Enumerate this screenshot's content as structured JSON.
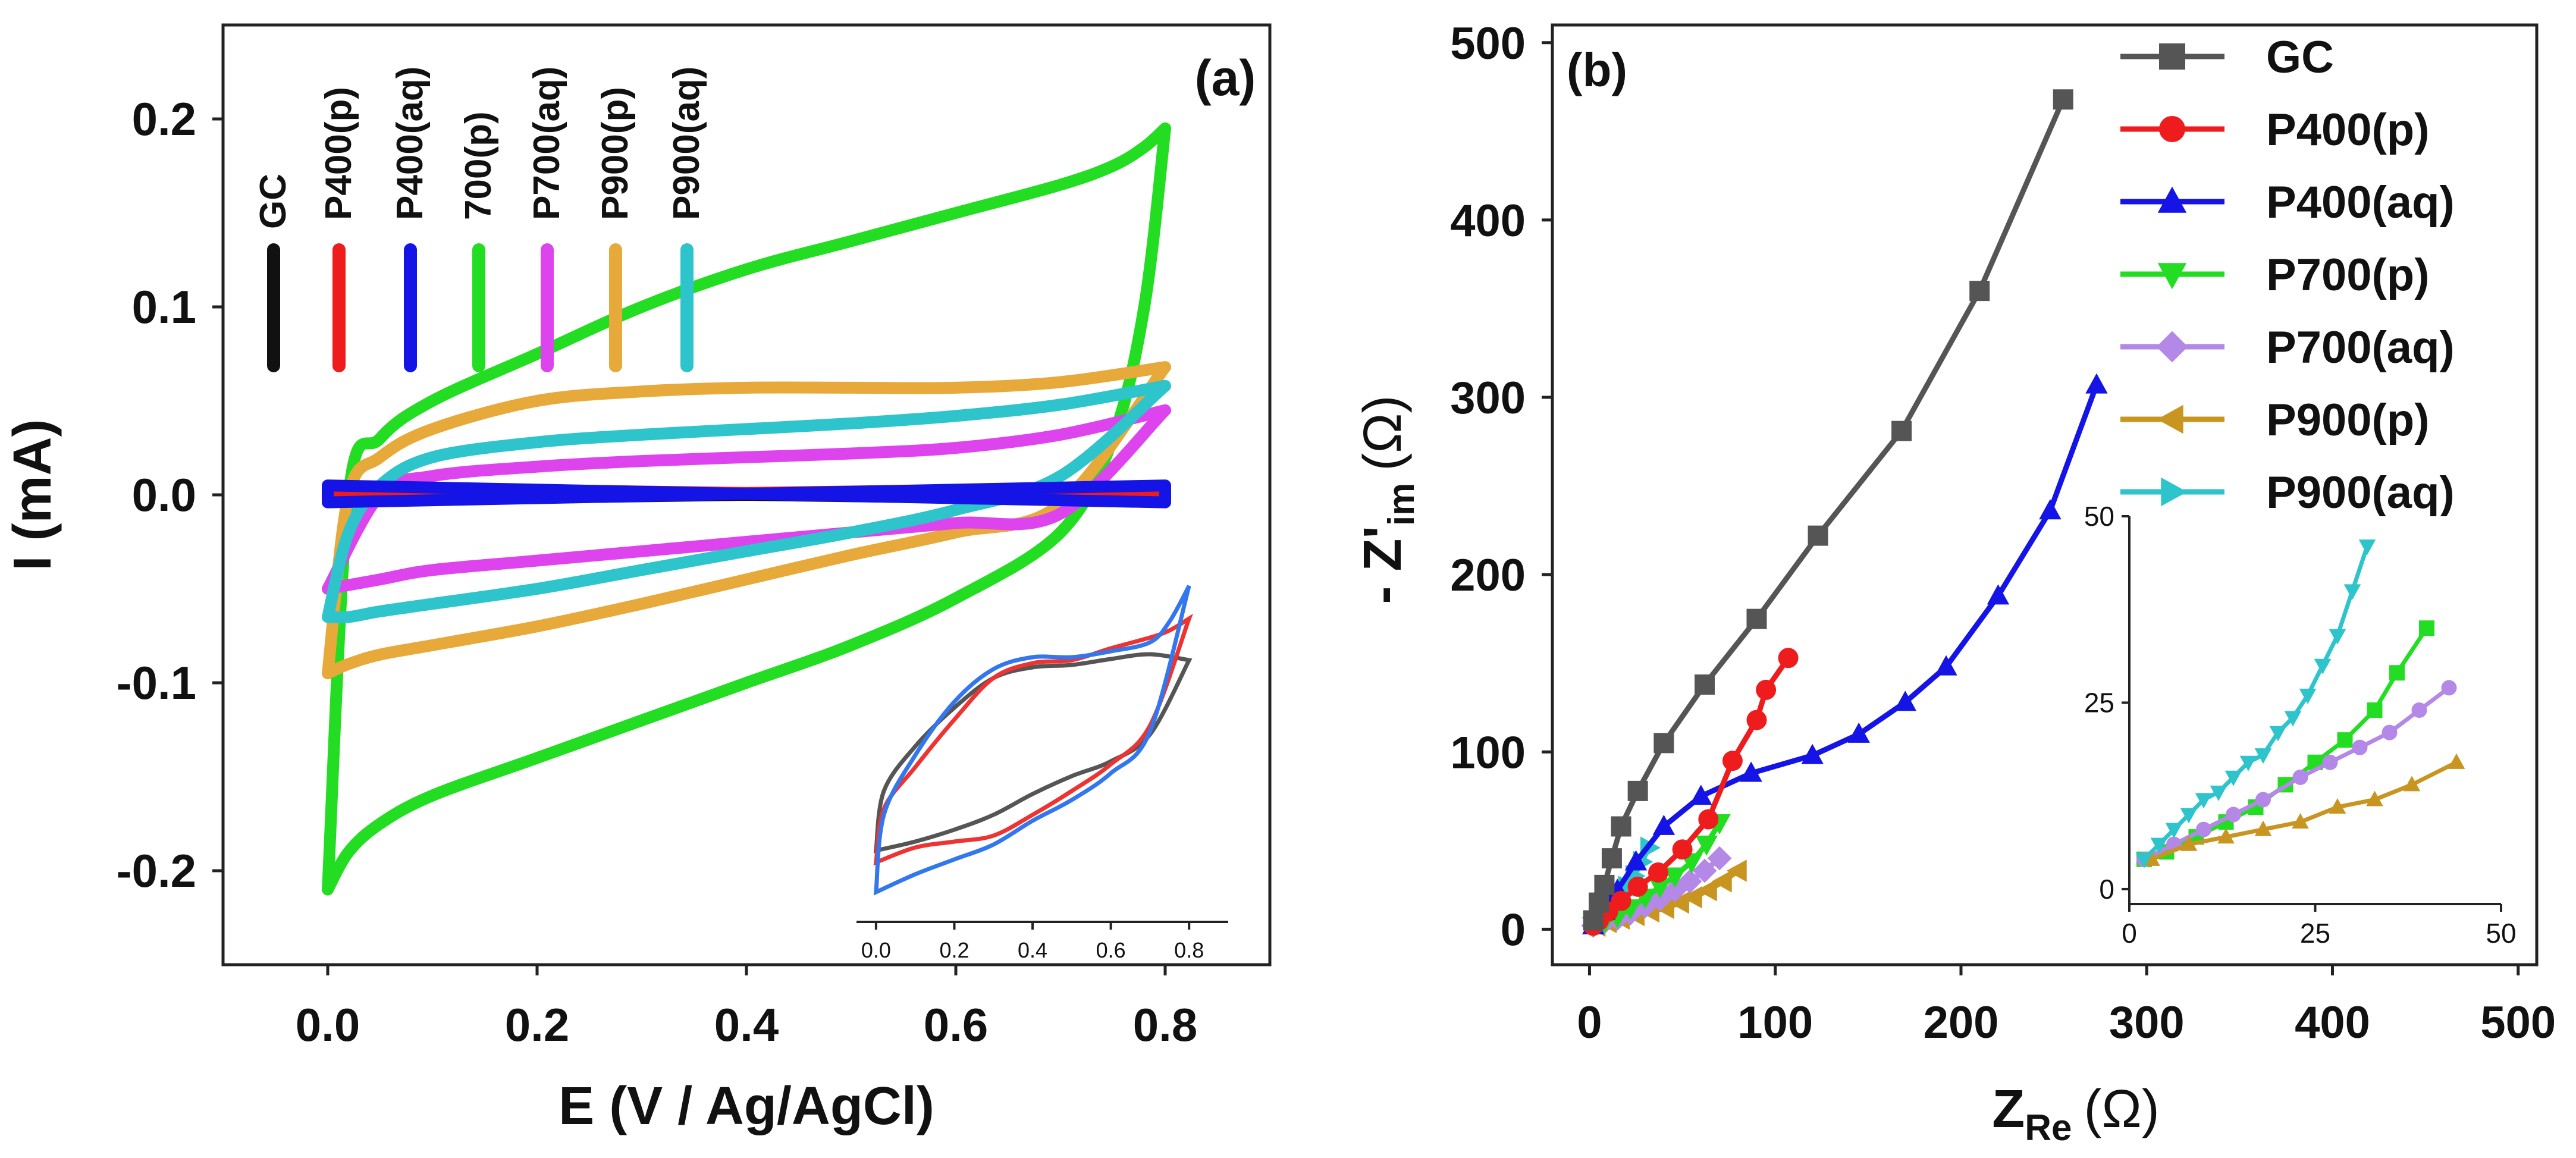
{
  "chart_data": [
    {
      "type": "line",
      "panel_label": "(a)",
      "xlabel": "E (V / Ag/AgCl)",
      "ylabel": "I (mA)",
      "xlim": [
        -0.1,
        0.9
      ],
      "ylim": [
        -0.25,
        0.25
      ],
      "xticks": [
        0.0,
        0.2,
        0.4,
        0.6,
        0.8
      ],
      "xtick_labels": [
        "0.0",
        "0.2",
        "0.4",
        "0.6",
        "0.8"
      ],
      "yticks": [
        0.2,
        0.1,
        0.0,
        -0.1,
        -0.2
      ],
      "ytick_labels": [
        "0.2",
        "0.1",
        "0.0",
        "-0.1",
        "-0.2"
      ],
      "legend_position": "top-left, vertical labels",
      "series": [
        {
          "name": "GC",
          "color": "#111111",
          "x": [
            0.0,
            0.8
          ],
          "y_forward": [
            -0.003,
            0.003
          ],
          "y_reverse": [
            0.003,
            -0.003
          ]
        },
        {
          "name": "P400(p)",
          "color": "#ee1c1c",
          "x": [
            0.0,
            0.8
          ],
          "y_forward": [
            -0.002,
            0.004
          ],
          "y_reverse": [
            0.004,
            -0.002
          ]
        },
        {
          "name": "P400(aq)",
          "color": "#1414e6",
          "x": [
            0.0,
            0.8
          ],
          "y_forward": [
            -0.004,
            0.005
          ],
          "y_reverse": [
            0.005,
            -0.004
          ]
        },
        {
          "name": "700(p)",
          "color": "#22dd22",
          "x": [
            0.0,
            0.02,
            0.05,
            0.1,
            0.2,
            0.3,
            0.4,
            0.5,
            0.6,
            0.7,
            0.75,
            0.78,
            0.8
          ],
          "y_forward": [
            -0.21,
            0.0,
            0.03,
            0.05,
            0.075,
            0.1,
            0.12,
            0.135,
            0.15,
            0.165,
            0.175,
            0.185,
            0.195
          ],
          "y_reverse": [
            -0.21,
            -0.19,
            -0.175,
            -0.16,
            -0.14,
            -0.12,
            -0.1,
            -0.08,
            -0.055,
            -0.02,
            0.03,
            0.1,
            0.195
          ]
        },
        {
          "name": "P700(aq)",
          "color": "#dd44ee",
          "x": [
            0.0,
            0.05,
            0.1,
            0.2,
            0.3,
            0.4,
            0.5,
            0.6,
            0.7,
            0.8
          ],
          "y_forward": [
            -0.05,
            0.0,
            0.01,
            0.015,
            0.018,
            0.02,
            0.022,
            0.025,
            0.032,
            0.045
          ],
          "y_reverse": [
            -0.05,
            -0.045,
            -0.04,
            -0.035,
            -0.03,
            -0.025,
            -0.02,
            -0.015,
            -0.01,
            0.045
          ]
        },
        {
          "name": "P900(p)",
          "color": "#e6a93a",
          "x": [
            0.0,
            0.02,
            0.05,
            0.1,
            0.2,
            0.3,
            0.4,
            0.5,
            0.6,
            0.7,
            0.8
          ],
          "y_forward": [
            -0.095,
            0.0,
            0.02,
            0.035,
            0.05,
            0.055,
            0.057,
            0.057,
            0.057,
            0.06,
            0.068
          ],
          "y_reverse": [
            -0.095,
            -0.09,
            -0.085,
            -0.08,
            -0.07,
            -0.058,
            -0.045,
            -0.032,
            -0.02,
            -0.005,
            0.068
          ]
        },
        {
          "name": "P900(aq)",
          "color": "#2ec4cc",
          "x": [
            0.0,
            0.02,
            0.05,
            0.1,
            0.2,
            0.3,
            0.4,
            0.5,
            0.6,
            0.7,
            0.8
          ],
          "y_forward": [
            -0.065,
            -0.02,
            0.005,
            0.02,
            0.028,
            0.032,
            0.035,
            0.038,
            0.042,
            0.048,
            0.058
          ],
          "y_reverse": [
            -0.065,
            -0.065,
            -0.062,
            -0.058,
            -0.05,
            -0.04,
            -0.03,
            -0.02,
            -0.008,
            0.01,
            0.058
          ]
        }
      ],
      "inset": {
        "xticks": [
          0.0,
          0.2,
          0.4,
          0.6,
          0.8
        ],
        "xtick_labels": [
          "0.0",
          "0.2",
          "0.4",
          "0.6",
          "0.8"
        ],
        "xlim": [
          -0.05,
          0.9
        ],
        "series": [
          {
            "name": "GC",
            "color": "#555555"
          },
          {
            "name": "P400(p)",
            "color": "#ee3333"
          },
          {
            "name": "P400(aq)",
            "color": "#3377ee"
          }
        ]
      }
    },
    {
      "type": "line",
      "panel_label": "(b)",
      "xlabel_main": "Z",
      "xlabel_sub": "Re",
      "xlabel_unit": "(Ω)",
      "ylabel_main": "- Z'",
      "ylabel_sub": "im",
      "ylabel_unit": "(Ω)",
      "xlim": [
        -20,
        510
      ],
      "ylim": [
        -20,
        510
      ],
      "xticks": [
        0,
        100,
        200,
        300,
        400,
        500
      ],
      "xtick_labels": [
        "0",
        "100",
        "200",
        "300",
        "400",
        "500"
      ],
      "yticks": [
        0,
        100,
        200,
        300,
        400,
        500
      ],
      "ytick_labels": [
        "0",
        "100",
        "200",
        "300",
        "400",
        "500"
      ],
      "legend_position": "top-right",
      "series": [
        {
          "name": "GC",
          "color": "#555555",
          "marker": "square",
          "x": [
            2,
            5,
            8,
            12,
            17,
            26,
            40,
            62,
            90,
            123,
            168,
            210,
            255
          ],
          "y": [
            5,
            15,
            25,
            40,
            58,
            78,
            105,
            138,
            175,
            222,
            281,
            360,
            468
          ]
        },
        {
          "name": "P400(p)",
          "color": "#ee1c1c",
          "marker": "circle",
          "x": [
            2,
            5,
            10,
            17,
            26,
            37,
            50,
            64,
            77,
            90,
            95,
            107
          ],
          "y": [
            2,
            5,
            10,
            16,
            24,
            32,
            45,
            62,
            95,
            118,
            135,
            153
          ]
        },
        {
          "name": "P400(aq)",
          "color": "#1414e6",
          "marker": "triangle-up",
          "x": [
            2,
            8,
            15,
            25,
            40,
            60,
            87,
            120,
            145,
            170,
            192,
            220,
            248,
            273
          ],
          "y": [
            2,
            10,
            22,
            38,
            58,
            75,
            88,
            98,
            110,
            128,
            148,
            188,
            236,
            307
          ]
        },
        {
          "name": "P700(p)",
          "color": "#22dd22",
          "marker": "triangle-down",
          "x": [
            2,
            8,
            15,
            22,
            30,
            38,
            46,
            55,
            63,
            70
          ],
          "y": [
            2,
            4,
            7,
            12,
            18,
            24,
            30,
            38,
            48,
            60
          ]
        },
        {
          "name": "P700(aq)",
          "color": "#b388e6",
          "marker": "diamond",
          "x": [
            2,
            8,
            15,
            22,
            30,
            38,
            46,
            54,
            62,
            70
          ],
          "y": [
            2,
            4,
            6,
            9,
            13,
            17,
            22,
            27,
            33,
            40
          ]
        },
        {
          "name": "P900(p)",
          "color": "#c89520",
          "marker": "triangle-left",
          "x": [
            4,
            10,
            17,
            25,
            33,
            41,
            49,
            56,
            64,
            72,
            80
          ],
          "y": [
            2,
            4,
            6,
            8,
            10,
            12,
            15,
            18,
            22,
            27,
            33
          ]
        },
        {
          "name": "P900(aq)",
          "color": "#2ec4cc",
          "marker": "triangle-right",
          "x": [
            2,
            5,
            8,
            11,
            14,
            17,
            20,
            24,
            28,
            32
          ],
          "y": [
            4,
            6,
            9,
            12,
            15,
            19,
            24,
            30,
            38,
            46
          ]
        }
      ],
      "inset": {
        "xlim": [
          0,
          50
        ],
        "ylim": [
          -2,
          50
        ],
        "xticks": [
          0,
          25,
          50
        ],
        "xtick_labels": [
          "0",
          "25",
          "50"
        ],
        "yticks": [
          0,
          25,
          50
        ],
        "ytick_labels": [
          "0",
          "25",
          "50"
        ],
        "series": [
          {
            "name": "P700(p)",
            "color": "#22dd22",
            "marker": "square",
            "x": [
              2,
              5,
              9,
              13,
              17,
              21,
              25,
              29,
              33,
              36,
              40
            ],
            "y": [
              4,
              5,
              7,
              9,
              11,
              14,
              17,
              20,
              24,
              29,
              35
            ]
          },
          {
            "name": "P700(aq)",
            "color": "#b388e6",
            "marker": "circle",
            "x": [
              2,
              6,
              10,
              14,
              18,
              23,
              27,
              31,
              35,
              39,
              43
            ],
            "y": [
              4,
              6,
              8,
              10,
              12,
              15,
              17,
              19,
              21,
              24,
              27
            ]
          },
          {
            "name": "P900(p)",
            "color": "#c89520",
            "marker": "triangle-up",
            "x": [
              3,
              8,
              13,
              18,
              23,
              28,
              33,
              38,
              44
            ],
            "y": [
              4,
              6,
              7,
              8,
              9,
              11,
              12,
              14,
              17
            ]
          },
          {
            "name": "P900(aq)",
            "color": "#2ec4cc",
            "marker": "triangle-down",
            "x": [
              2,
              4,
              6,
              8,
              10,
              12,
              14,
              16,
              18,
              20,
              22,
              24,
              26,
              28,
              30,
              32
            ],
            "y": [
              4,
              6,
              8,
              10,
              12,
              13,
              15,
              17,
              18,
              21,
              23,
              26,
              30,
              34,
              40,
              46
            ]
          }
        ]
      }
    }
  ]
}
